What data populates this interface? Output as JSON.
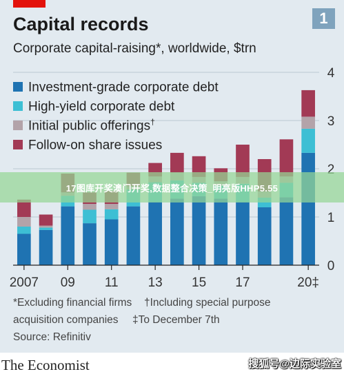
{
  "panel_badge": "1",
  "colors": {
    "investment_grade": "#1f73b2",
    "high_yield": "#3dbfd4",
    "ipo": "#b3a3a9",
    "follow_on": "#a23a55",
    "background": "#e2eaf0",
    "brand_red": "#e3120b"
  },
  "legend": [
    {
      "label": "Investment-grade corporate debt",
      "sup": ""
    },
    {
      "label": "High-yield corporate debt",
      "sup": ""
    },
    {
      "label": "Initial public offerings",
      "sup": "†"
    },
    {
      "label": "Follow-on share issues",
      "sup": ""
    }
  ],
  "footnotes": {
    "line1_a": "*Excluding financial firms",
    "line1_b": "†Including special purpose",
    "line2_a": "acquisition companies",
    "line2_b": "‡To December 7th",
    "source": "Source: Refinitiv"
  },
  "watermark_text": "17图库开奖澳门开奖,数据整合决策_明亮版HHP5.55",
  "logo_text": "The Economist",
  "corner_watermark": "搜狐号@边际实验室",
  "chart_data": {
    "type": "bar",
    "stacked": true,
    "title": "Capital records",
    "subtitle": "Corporate capital-raising*, worldwide, $trn",
    "xlabel": "",
    "ylabel": "",
    "ylim": [
      0,
      4
    ],
    "yticks": [
      0,
      1,
      2,
      3,
      4
    ],
    "y_axis_side": "right",
    "grid": true,
    "legend_position": "top-left",
    "x": [
      2007,
      2008,
      2009,
      2010,
      2011,
      2012,
      2013,
      2014,
      2015,
      2016,
      2017,
      2018,
      2019,
      2020
    ],
    "x_tick_labels": [
      {
        "x": 2007,
        "label": "2007"
      },
      {
        "x": 2009,
        "label": "09"
      },
      {
        "x": 2011,
        "label": "11"
      },
      {
        "x": 2013,
        "label": "13"
      },
      {
        "x": 2015,
        "label": "15"
      },
      {
        "x": 2017,
        "label": "17"
      },
      {
        "x": 2020,
        "label": "20‡"
      }
    ],
    "series": [
      {
        "name": "Investment-grade corporate debt",
        "color": "#1f73b2",
        "values": [
          0.65,
          0.73,
          1.22,
          0.87,
          0.95,
          1.22,
          1.31,
          1.38,
          1.43,
          1.38,
          1.31,
          1.2,
          1.41,
          2.33
        ]
      },
      {
        "name": "High-yield corporate debt",
        "color": "#3dbfd4",
        "values": [
          0.15,
          0.05,
          0.22,
          0.28,
          0.21,
          0.35,
          0.41,
          0.38,
          0.28,
          0.27,
          0.38,
          0.2,
          0.3,
          0.5
        ]
      },
      {
        "name": "Initial public offerings",
        "color": "#b3a3a9",
        "values": [
          0.2,
          0.04,
          0.07,
          0.12,
          0.11,
          0.07,
          0.12,
          0.16,
          0.12,
          0.09,
          0.14,
          0.13,
          0.13,
          0.25
        ]
      },
      {
        "name": "Follow-on share issues",
        "color": "#a23a55",
        "values": [
          0.36,
          0.23,
          0.39,
          0.24,
          0.27,
          0.28,
          0.28,
          0.41,
          0.43,
          0.27,
          0.67,
          0.67,
          0.77,
          0.55
        ]
      }
    ]
  }
}
